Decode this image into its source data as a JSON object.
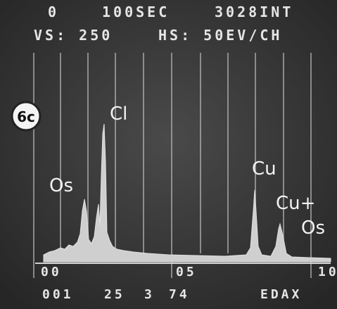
{
  "header": {
    "counter": "0",
    "time": "100SEC",
    "integral": "3028INT",
    "vertical_scale": "VS: 250",
    "horizontal_scale": "HS: 50EV/CH"
  },
  "badge": "6c",
  "peak_labels": [
    "Cl",
    "Os",
    "Cu",
    "Cu+",
    "Os"
  ],
  "axis_labels": [
    "00",
    "05",
    "10"
  ],
  "footer": [
    "001",
    "25",
    "3",
    "74",
    "EDAX"
  ]
}
